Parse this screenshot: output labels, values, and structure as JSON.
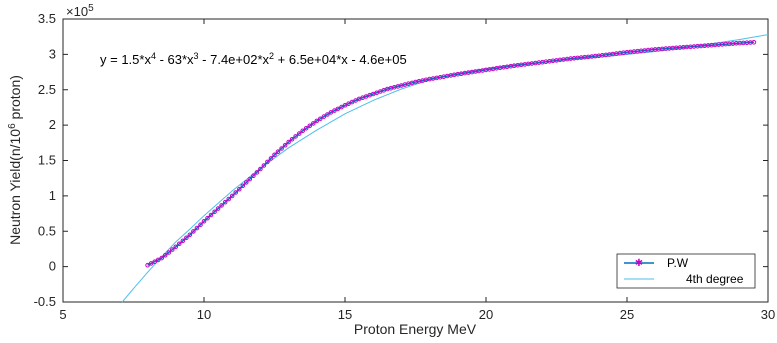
{
  "chart_data": {
    "type": "line",
    "xlabel": "Proton Energy MeV",
    "ylabel": "Neutron Yield(n/10",
    "ylabel_sup": "6",
    "ylabel_tail": " proton)",
    "y_exponent_base": "×10",
    "y_exponent_power": "5",
    "xlim": [
      5,
      30
    ],
    "ylim": [
      -0.5,
      3.5
    ],
    "y_multiplier": 100000,
    "x_ticks": [
      "5",
      "10",
      "15",
      "20",
      "25",
      "30"
    ],
    "y_ticks": [
      "-0.5",
      "0",
      "0.5",
      "1",
      "1.5",
      "2",
      "2.5",
      "3",
      "3.5"
    ],
    "grid": false,
    "legend_position": "bottom-right",
    "equation": {
      "p1": "y = 1.5*x",
      "s1": "4",
      "p2": " - 63*x",
      "s2": "3",
      "p3": " - 7.4e+02*x",
      "s3": "2",
      "p4": " + 6.5e+04*x - 4.6e+05"
    },
    "series": [
      {
        "name": "P.W",
        "color": "#0072BD",
        "marker_color": "#C800C8",
        "x": [
          8,
          8.5,
          9,
          9.5,
          10,
          10.5,
          11,
          11.5,
          12,
          12.5,
          13,
          13.5,
          14,
          14.5,
          15,
          15.5,
          16,
          16.5,
          17,
          17.5,
          18,
          19,
          20,
          21,
          22,
          23,
          24,
          25,
          26,
          27,
          28,
          29,
          29.5
        ],
        "y": [
          0.02,
          0.12,
          0.28,
          0.45,
          0.64,
          0.82,
          1.0,
          1.19,
          1.38,
          1.58,
          1.76,
          1.92,
          2.06,
          2.18,
          2.28,
          2.37,
          2.44,
          2.51,
          2.56,
          2.61,
          2.65,
          2.72,
          2.78,
          2.84,
          2.89,
          2.94,
          2.98,
          3.03,
          3.07,
          3.1,
          3.13,
          3.16,
          3.17
        ]
      },
      {
        "name": "4th degree",
        "color": "#4DBEEE",
        "x": [
          7.1,
          7.5,
          8,
          8.5,
          9,
          9.5,
          10,
          11,
          12,
          13,
          14,
          15,
          16,
          17,
          18,
          19,
          20,
          21,
          22,
          23,
          24,
          25,
          26,
          27,
          28,
          29,
          30
        ],
        "y": [
          -0.5,
          -0.31,
          -0.08,
          0.14,
          0.35,
          0.53,
          0.72,
          1.07,
          1.39,
          1.68,
          1.93,
          2.16,
          2.35,
          2.51,
          2.64,
          2.73,
          2.8,
          2.85,
          2.89,
          2.93,
          2.96,
          3.0,
          3.04,
          3.09,
          3.15,
          3.21,
          3.28
        ]
      }
    ]
  }
}
